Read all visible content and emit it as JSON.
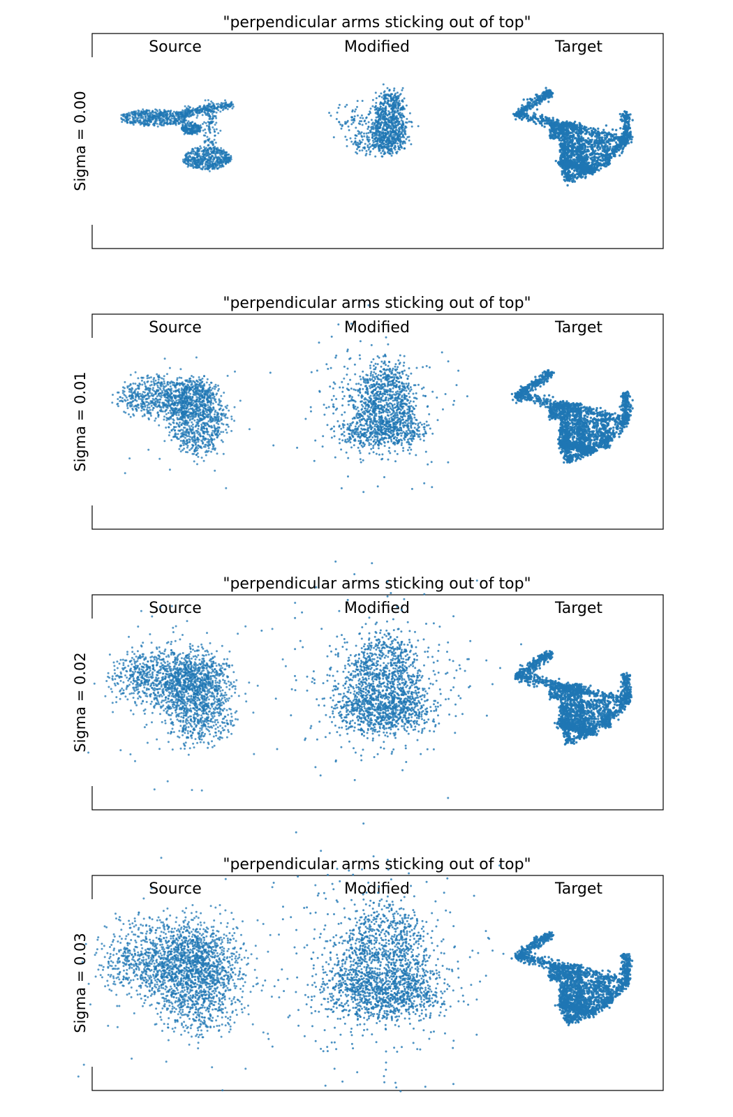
{
  "chart_data": {
    "type": "scatter",
    "point_color": "#1f77b4",
    "grid": false,
    "panels": [
      {
        "title": "\"perpendicular arms sticking out of top\"",
        "row_label": "Sigma = 0.00",
        "sigma": 0.0,
        "columns": [
          "Source",
          "Modified",
          "Target"
        ]
      },
      {
        "title": "\"perpendicular arms sticking out of top\"",
        "row_label": "Sigma = 0.01",
        "sigma": 0.01,
        "columns": [
          "Source",
          "Modified",
          "Target"
        ]
      },
      {
        "title": "\"perpendicular arms sticking out of top\"",
        "row_label": "Sigma = 0.02",
        "sigma": 0.02,
        "columns": [
          "Source",
          "Modified",
          "Target"
        ]
      },
      {
        "title": "\"perpendicular arms sticking out of top\"",
        "row_label": "Sigma = 0.03",
        "sigma": 0.03,
        "columns": [
          "Source",
          "Modified",
          "Target"
        ]
      }
    ]
  }
}
